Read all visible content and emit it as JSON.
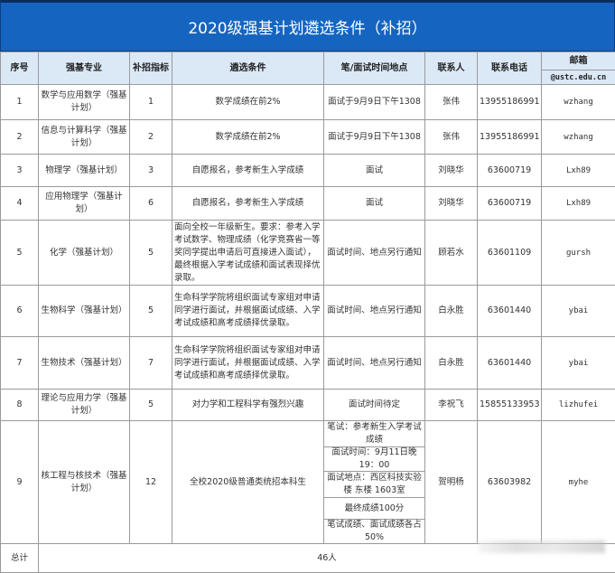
{
  "title": "2020级强基计划遴选条件（补招）",
  "headers": {
    "no": "序号",
    "major": "强基专业",
    "quota": "补招指标",
    "criteria": "遴选条件",
    "time_place": "笔/面试时间地点",
    "contact": "联系人",
    "phone": "联系电话",
    "email": "邮箱",
    "email_domain": "@ustc.edu.cn"
  },
  "rows": [
    {
      "no": "1",
      "major": "数学与应用数学（强基计划）",
      "quota": "1",
      "criteria": "数学成绩在前2%",
      "time_place": "面试于9月9日下午1308",
      "contact": "张伟",
      "phone": "13955186991",
      "email": "wzhang"
    },
    {
      "no": "2",
      "major": "信息与计算科学（强基计划）",
      "quota": "2",
      "criteria": "数学成绩在前2%",
      "time_place": "面试于9月9日下午1308",
      "contact": "张伟",
      "phone": "13955186991",
      "email": "wzhang"
    },
    {
      "no": "3",
      "major": "物理学（强基计划）",
      "quota": "3",
      "criteria": "自愿报名，参考新生入学成绩",
      "time_place": "面试",
      "contact": "刘晓华",
      "phone": "63600719",
      "email": "Lxh89"
    },
    {
      "no": "4",
      "major": "应用物理学（强基计划）",
      "quota": "6",
      "criteria": "自愿报名，参考新生入学成绩",
      "time_place": "面试",
      "contact": "刘晓华",
      "phone": "63600719",
      "email": "Lxh89"
    },
    {
      "no": "5",
      "major": "化学（强基计划）",
      "quota": "5",
      "criteria": "面向全校一年级新生。要求：参考入学考试数学、物理成绩（化学竞赛省一等奖同学提出申请后可直接进入面试），最终根据入学考试成绩和面试表现择优录取。",
      "time_place": "面试时间、地点另行通知",
      "contact": "顾若水",
      "phone": "63601109",
      "email": "gursh"
    },
    {
      "no": "6",
      "major": "生物科学（强基计划）",
      "quota": "5",
      "criteria": "生命科学学院将组织面试专家组对申请同学进行面试，并根据面试成绩、入学考试成绩和高考成绩择优录取。",
      "time_place": "面试时间、地点另行通知",
      "contact": "白永胜",
      "phone": "63601440",
      "email": "ybai"
    },
    {
      "no": "7",
      "major": "生物技术（强基计划）",
      "quota": "7",
      "criteria": "生命科学学院将组织面试专家组对申请同学进行面试，并根据面试成绩、入学考试成绩和高考成绩择优录取。",
      "time_place": "面试时间、地点另行通知",
      "contact": "白永胜",
      "phone": "63601440",
      "email": "ybai"
    },
    {
      "no": "8",
      "major": "理论与应用力学（强基计划）",
      "quota": "5",
      "criteria": "对力学和工程科学有强烈兴趣",
      "time_place": "面试时间待定",
      "contact": "李祝飞",
      "phone": "15855133953",
      "email": "lizhufei"
    }
  ],
  "row9": {
    "no": "9",
    "major": "核工程与核技术（强基计划）",
    "quota": "12",
    "criteria": "全校2020级普通类统招本科生",
    "time_place": [
      "笔试：参考新生入学考试成绩",
      "面试时间：9月11日晚19：00",
      "面试地点：西区科技实验楼 东楼 1603室",
      "最终成绩100分",
      "笔试成绩、面试成绩各占50%"
    ],
    "contact": "贺明杨",
    "phone": "63603982",
    "email": "myhe"
  },
  "total": {
    "label": "总计",
    "value": "46人"
  },
  "colors": {
    "title_bg": "#1565c0",
    "header_bg": "#dbe8f6"
  }
}
